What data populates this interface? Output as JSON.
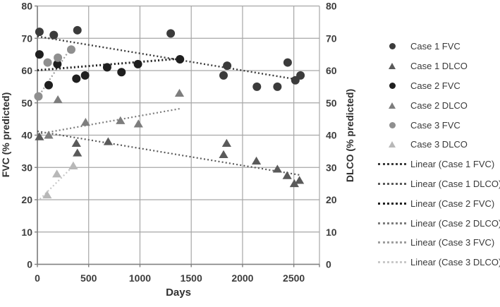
{
  "figure": {
    "x_axis_title": "Days",
    "y_axis_title_left": "FVC (% predicted)",
    "y_axis_title_right": "DLCO (% predicted)"
  },
  "chart_data": {
    "type": "scatter",
    "title": "",
    "xlabel": "Days",
    "ylabel_left": "FVC (% predicted)",
    "ylabel_right": "DLCO (% predicted)",
    "xlim": [
      0,
      2750
    ],
    "ylim": [
      0,
      80
    ],
    "x_ticks": [
      0,
      500,
      1000,
      1500,
      2000,
      2500
    ],
    "y_ticks": [
      0,
      10,
      20,
      30,
      40,
      50,
      60,
      70,
      80
    ],
    "grid": true,
    "legend_position": "right",
    "colors": {
      "grid": "#a6a6a6",
      "axis": "#7f7f7f",
      "tick_text": "#3d3d3d"
    },
    "series": [
      {
        "name": "Case 1 FVC",
        "marker": "circle",
        "color": "#3b3b3b",
        "points": [
          [
            20,
            72
          ],
          [
            160,
            71
          ],
          [
            390,
            72.5
          ],
          [
            1300,
            71.5
          ],
          [
            1815,
            58.5
          ],
          [
            1850,
            61.5
          ],
          [
            2140,
            55
          ],
          [
            2340,
            55
          ],
          [
            2440,
            62.5
          ],
          [
            2515,
            57
          ],
          [
            2565,
            58.5
          ]
        ]
      },
      {
        "name": "Case 1 DLCO",
        "marker": "triangle",
        "color": "#5a5a5a",
        "points": [
          [
            20,
            39.5
          ],
          [
            380,
            37.5
          ],
          [
            390,
            34.5
          ],
          [
            690,
            38
          ],
          [
            1815,
            34
          ],
          [
            1845,
            37.5
          ],
          [
            2135,
            32
          ],
          [
            2340,
            29.5
          ],
          [
            2435,
            27.5
          ],
          [
            2505,
            25
          ],
          [
            2555,
            26
          ]
        ]
      },
      {
        "name": "Case 2 FVC",
        "marker": "circle",
        "color": "#1f1f1f",
        "points": [
          [
            20,
            65
          ],
          [
            110,
            55.5
          ],
          [
            195,
            62
          ],
          [
            380,
            57.5
          ],
          [
            465,
            58.5
          ],
          [
            680,
            61
          ],
          [
            820,
            59.5
          ],
          [
            980,
            62
          ],
          [
            1390,
            63.5
          ]
        ]
      },
      {
        "name": "Case 2 DLCO",
        "marker": "triangle",
        "color": "#7d7d7d",
        "points": [
          [
            110,
            40
          ],
          [
            200,
            51
          ],
          [
            470,
            44
          ],
          [
            810,
            44.5
          ],
          [
            985,
            43.5
          ],
          [
            1385,
            53
          ]
        ]
      },
      {
        "name": "Case 3 FVC",
        "marker": "circle",
        "color": "#8f8f8f",
        "points": [
          [
            10,
            52
          ],
          [
            100,
            62.5
          ],
          [
            200,
            64
          ],
          [
            330,
            66.5
          ]
        ]
      },
      {
        "name": "Case 3 DLCO",
        "marker": "triangle",
        "color": "#b8b8b8",
        "points": [
          [
            95,
            21.5
          ],
          [
            190,
            28
          ],
          [
            350,
            30.5
          ]
        ]
      }
    ],
    "trendlines": [
      {
        "name": "Linear (Case 1 FVC)",
        "color": "#3b3b3b",
        "x1": 0,
        "y1": 70.6,
        "x2": 2520,
        "y2": 57.3,
        "weight": 2.4
      },
      {
        "name": "Linear (Case 1 DLCO)",
        "color": "#5a5a5a",
        "x1": 0,
        "y1": 41.2,
        "x2": 2570,
        "y2": 27.6,
        "weight": 2.2
      },
      {
        "name": "Linear (Case 2 FVC)",
        "color": "#1f1f1f",
        "x1": 0,
        "y1": 60.1,
        "x2": 1390,
        "y2": 63.7,
        "weight": 3.0
      },
      {
        "name": "Linear (Case 2 DLCO)",
        "color": "#7d7d7d",
        "x1": 0,
        "y1": 40.3,
        "x2": 1390,
        "y2": 48.2,
        "weight": 2.2
      },
      {
        "name": "Linear (Case 3 FVC)",
        "color": "#9e9e9e",
        "x1": 0,
        "y1": 51.5,
        "x2": 330,
        "y2": 67.2,
        "weight": 2.2
      },
      {
        "name": "Linear (Case 3 DLCO)",
        "color": "#c9c9c9",
        "x1": 25,
        "y1": 20.2,
        "x2": 355,
        "y2": 30.6,
        "weight": 2.2
      }
    ]
  }
}
